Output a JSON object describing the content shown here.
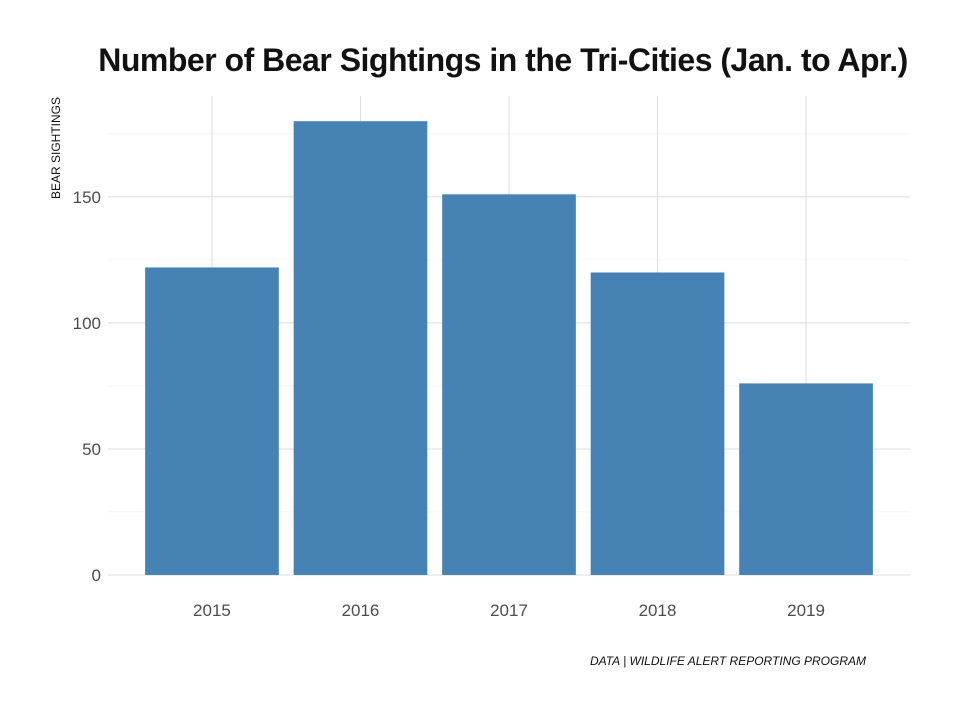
{
  "chart_data": {
    "type": "bar",
    "title": "Number of Bear Sightings in the Tri-Cities (Jan. to Apr.)",
    "xlabel": "",
    "ylabel": "BEAR SIGHTINGS",
    "categories": [
      "2015",
      "2016",
      "2017",
      "2018",
      "2019"
    ],
    "values": [
      122,
      180,
      151,
      120,
      76
    ],
    "ylim": [
      0,
      190
    ],
    "yticks": [
      0,
      50,
      100,
      150
    ],
    "caption": "DATA | WILDLIFE ALERT REPORTING PROGRAM",
    "bar_color": "#4682b4",
    "grid": true,
    "legend": "none"
  }
}
